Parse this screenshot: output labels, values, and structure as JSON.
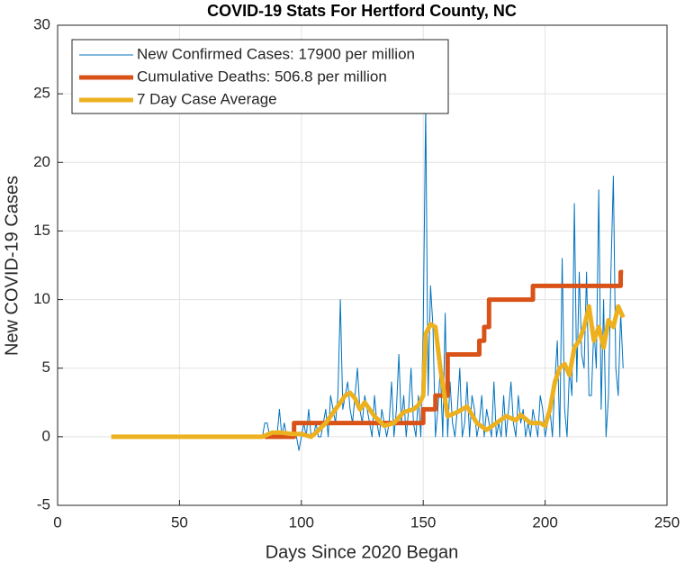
{
  "chart_data": {
    "type": "line",
    "title": "COVID-19 Stats For Hertford County, NC",
    "xlabel": "Days Since 2020 Began",
    "ylabel": "New COVID-19 Cases",
    "xlim": [
      0,
      250
    ],
    "xticks": [
      0,
      50,
      100,
      150,
      200,
      250
    ],
    "ylim": [
      -5,
      30
    ],
    "yticks": [
      -5,
      0,
      5,
      10,
      15,
      20,
      25,
      30
    ],
    "grid": true,
    "legend": "upper left",
    "series": [
      {
        "name": "New Confirmed Cases: 17900 per million",
        "color": "#0072BD",
        "width": 1,
        "x": [
          84,
          85,
          86,
          87,
          88,
          89,
          90,
          91,
          92,
          93,
          94,
          95,
          96,
          97,
          98,
          99,
          100,
          101,
          102,
          103,
          104,
          105,
          106,
          107,
          108,
          109,
          110,
          111,
          112,
          113,
          114,
          115,
          116,
          117,
          118,
          119,
          120,
          121,
          122,
          123,
          124,
          125,
          126,
          127,
          128,
          129,
          130,
          131,
          132,
          133,
          134,
          135,
          136,
          137,
          138,
          139,
          140,
          141,
          142,
          143,
          144,
          145,
          146,
          147,
          148,
          149,
          150,
          151,
          152,
          153,
          154,
          155,
          156,
          157,
          158,
          159,
          160,
          161,
          162,
          163,
          164,
          165,
          166,
          167,
          168,
          169,
          170,
          171,
          172,
          173,
          174,
          175,
          176,
          177,
          178,
          179,
          180,
          181,
          182,
          183,
          184,
          185,
          186,
          187,
          188,
          189,
          190,
          191,
          192,
          193,
          194,
          195,
          196,
          197,
          198,
          199,
          200,
          201,
          202,
          203,
          204,
          205,
          206,
          207,
          208,
          209,
          210,
          211,
          212,
          213,
          214,
          215,
          216,
          217,
          218,
          219,
          220,
          221,
          222,
          223,
          224,
          225,
          226,
          227,
          228,
          229,
          230,
          231,
          232
        ],
        "values": [
          0,
          1,
          1,
          0,
          0,
          0,
          0,
          2,
          0,
          1,
          0,
          0,
          0,
          0,
          0,
          -1,
          0,
          1,
          0,
          2,
          0,
          0,
          1,
          0,
          0,
          1,
          2,
          0,
          3,
          2,
          1,
          3,
          10,
          2,
          3,
          4,
          2,
          1,
          3,
          5,
          2,
          1,
          3,
          2,
          1,
          0,
          3,
          1,
          0,
          2,
          1,
          0,
          1,
          4,
          0,
          2,
          6,
          1,
          3,
          0,
          2,
          5,
          1,
          0,
          3,
          0,
          8,
          24,
          3,
          11,
          8,
          0,
          2,
          5,
          0,
          9,
          0,
          4,
          1,
          0,
          2,
          5,
          0,
          1,
          4,
          0,
          3,
          2,
          0,
          1,
          3,
          0,
          2,
          1,
          0,
          4,
          0,
          1,
          0,
          3,
          0,
          2,
          4,
          1,
          0,
          3,
          1,
          2,
          0,
          1,
          0,
          2,
          1,
          0,
          3,
          2,
          0,
          1,
          2,
          0,
          4,
          7,
          0,
          13,
          2,
          0,
          5,
          3,
          17,
          4,
          12,
          6,
          5,
          12,
          3,
          3,
          8,
          5,
          18,
          2,
          10,
          0,
          3,
          12,
          19,
          5,
          3,
          9,
          5
        ]
      },
      {
        "name": "Cumulative Deaths: 506.8 per million",
        "color": "#D95319",
        "width": 5,
        "x": [
          85,
          97,
          97,
          150,
          150,
          155,
          155,
          160,
          160,
          173,
          173,
          175,
          175,
          177,
          177,
          195,
          195,
          231,
          231,
          232
        ],
        "values": [
          0,
          0,
          1,
          1,
          2,
          2,
          3,
          3,
          6,
          6,
          7,
          7,
          8,
          8,
          10,
          10,
          11,
          11,
          12,
          12
        ]
      },
      {
        "name": "7 Day Case Average",
        "color": "#EDB120",
        "width": 5,
        "x": [
          22,
          84,
          88,
          92,
          96,
          100,
          104,
          106,
          110,
          114,
          118,
          120,
          122,
          124,
          126,
          130,
          134,
          138,
          142,
          146,
          148,
          150,
          151,
          153,
          155,
          157,
          160,
          164,
          168,
          172,
          176,
          180,
          184,
          188,
          190,
          194,
          198,
          200,
          202,
          204,
          206,
          208,
          210,
          212,
          214,
          216,
          218,
          220,
          222,
          224,
          226,
          228,
          230,
          232
        ],
        "values": [
          0,
          0,
          0.3,
          0.3,
          0.2,
          0.2,
          0,
          0.3,
          1,
          2,
          3,
          3.2,
          2.8,
          2,
          2.5,
          1.5,
          0.8,
          1,
          1.8,
          2,
          2.3,
          3,
          7.5,
          8.2,
          8,
          5,
          1.5,
          1.8,
          2.2,
          1,
          0.5,
          1,
          1.5,
          1.2,
          1.6,
          1,
          1,
          0.8,
          2,
          4,
          5,
          5.3,
          4.5,
          6.5,
          7,
          8,
          9.5,
          7,
          8,
          6.5,
          8.5,
          8,
          9.5,
          8.7
        ]
      }
    ]
  }
}
